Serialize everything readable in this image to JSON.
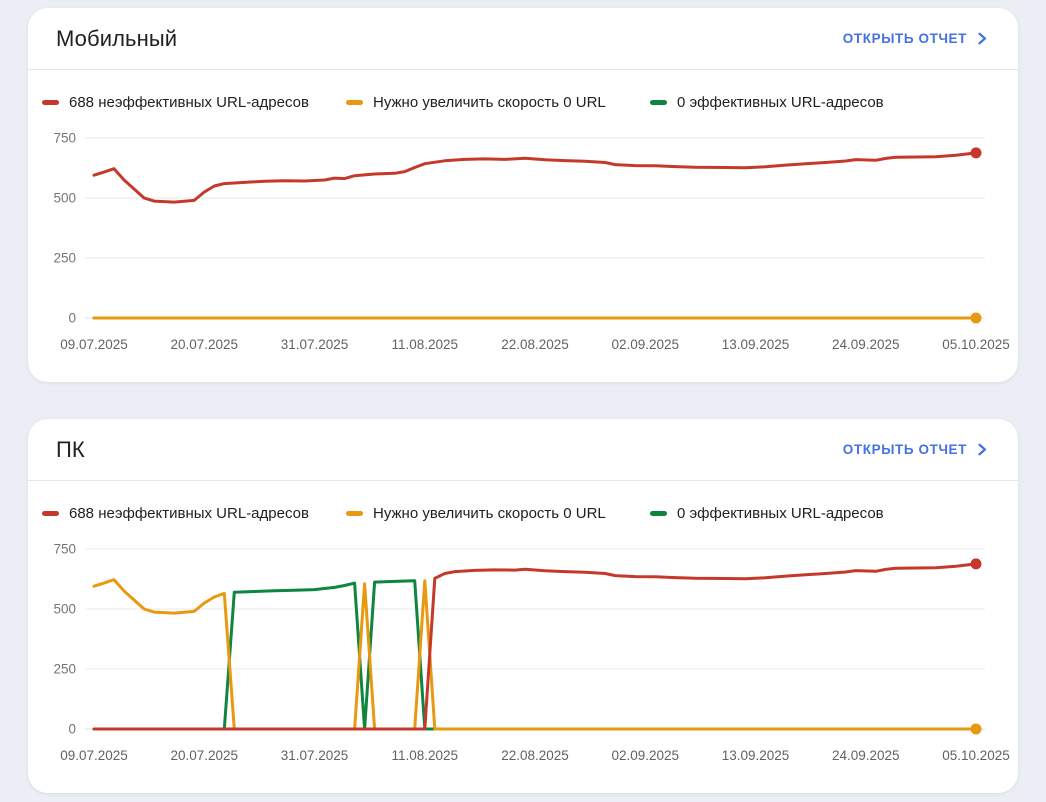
{
  "page": {
    "background": "#ebeef5",
    "accent_blue": "#4472e4"
  },
  "legend": {
    "items": [
      {
        "label": "688 неэффективных URL-адресов",
        "color": "#c5392b"
      },
      {
        "label": "Нужно увеличить скорость 0 URL",
        "color": "#e8990f"
      },
      {
        "label": "0 эффективных URL-адресов",
        "color": "#0f8540"
      }
    ]
  },
  "cards": [
    {
      "title": "Мобильный",
      "link_label": "ОТКРЫТЬ ОТЧЕТ"
    },
    {
      "title": "ПК",
      "link_label": "ОТКРЫТЬ ОТЧЕТ"
    }
  ],
  "chart_data": [
    {
      "type": "line",
      "title": "Мобильный",
      "xlabel": "",
      "ylabel": "",
      "ylim": [
        0,
        750
      ],
      "yticks": [
        0,
        250,
        500,
        750
      ],
      "grid": "horizontal",
      "legend_position": "top",
      "x_span_days": 88,
      "x_tick_interval_days": 11,
      "x_tick_labels": [
        "09.07.2025",
        "20.07.2025",
        "31.07.2025",
        "11.08.2025",
        "22.08.2025",
        "02.09.2025",
        "13.09.2025",
        "24.09.2025",
        "05.10.2025"
      ],
      "series": [
        {
          "name": "688 неэффективных URL-адресов",
          "color": "#c5392b",
          "end_dot": true,
          "points": [
            [
              0,
              595
            ],
            [
              1,
              608
            ],
            [
              2,
              622
            ],
            [
              3,
              575
            ],
            [
              5,
              500
            ],
            [
              6,
              487
            ],
            [
              8,
              483
            ],
            [
              10,
              490
            ],
            [
              11,
              525
            ],
            [
              12,
              550
            ],
            [
              13,
              560
            ],
            [
              15,
              565
            ],
            [
              17,
              570
            ],
            [
              19,
              572
            ],
            [
              21,
              571
            ],
            [
              23,
              575
            ],
            [
              24,
              583
            ],
            [
              25,
              581
            ],
            [
              26,
              593
            ],
            [
              28,
              600
            ],
            [
              30,
              603
            ],
            [
              31,
              610
            ],
            [
              32,
              627
            ],
            [
              33,
              643
            ],
            [
              35,
              655
            ],
            [
              37,
              661
            ],
            [
              39,
              663
            ],
            [
              41,
              661
            ],
            [
              43,
              666
            ],
            [
              45,
              659
            ],
            [
              47,
              656
            ],
            [
              49,
              653
            ],
            [
              51,
              648
            ],
            [
              52,
              639
            ],
            [
              54,
              635
            ],
            [
              56,
              634
            ],
            [
              58,
              631
            ],
            [
              60,
              628
            ],
            [
              63,
              627
            ],
            [
              65,
              626
            ],
            [
              67,
              630
            ],
            [
              69,
              637
            ],
            [
              71,
              643
            ],
            [
              73,
              648
            ],
            [
              75,
              654
            ],
            [
              76,
              660
            ],
            [
              78,
              657
            ],
            [
              79,
              665
            ],
            [
              80,
              670
            ],
            [
              82,
              671
            ],
            [
              84,
              672
            ],
            [
              86,
              678
            ],
            [
              88,
              688
            ]
          ]
        },
        {
          "name": "Нужно увеличить скорость 0 URL",
          "color": "#e8990f",
          "end_dot": true,
          "points": [
            [
              0,
              0
            ],
            [
              88,
              0
            ]
          ]
        },
        {
          "name": "0 эффективных URL-адресов",
          "color": "#0f8540",
          "end_dot": false,
          "points": [
            [
              0,
              0
            ],
            [
              88,
              0
            ]
          ]
        }
      ]
    },
    {
      "type": "line",
      "title": "ПК",
      "xlabel": "",
      "ylabel": "",
      "ylim": [
        0,
        750
      ],
      "yticks": [
        0,
        250,
        500,
        750
      ],
      "grid": "horizontal",
      "legend_position": "top",
      "x_span_days": 88,
      "x_tick_interval_days": 11,
      "x_tick_labels": [
        "09.07.2025",
        "20.07.2025",
        "31.07.2025",
        "11.08.2025",
        "22.08.2025",
        "02.09.2025",
        "13.09.2025",
        "24.09.2025",
        "05.10.2025"
      ],
      "series": [
        {
          "name": "688 неэффективных URL-адресов",
          "color": "#c5392b",
          "end_dot": true,
          "points": [
            [
              0,
              0
            ],
            [
              33,
              0
            ],
            [
              34,
              628
            ],
            [
              35,
              648
            ],
            [
              36,
              656
            ],
            [
              38,
              661
            ],
            [
              40,
              663
            ],
            [
              42,
              662
            ],
            [
              43,
              666
            ],
            [
              45,
              659
            ],
            [
              47,
              656
            ],
            [
              49,
              653
            ],
            [
              51,
              648
            ],
            [
              52,
              639
            ],
            [
              54,
              635
            ],
            [
              56,
              634
            ],
            [
              58,
              631
            ],
            [
              60,
              628
            ],
            [
              63,
              627
            ],
            [
              65,
              626
            ],
            [
              67,
              630
            ],
            [
              69,
              637
            ],
            [
              71,
              643
            ],
            [
              73,
              648
            ],
            [
              75,
              654
            ],
            [
              76,
              660
            ],
            [
              78,
              657
            ],
            [
              79,
              665
            ],
            [
              80,
              670
            ],
            [
              82,
              671
            ],
            [
              84,
              672
            ],
            [
              86,
              678
            ],
            [
              88,
              688
            ]
          ]
        },
        {
          "name": "Нужно увеличить скорость 0 URL",
          "color": "#e8990f",
          "end_dot": true,
          "points": [
            [
              0,
              595
            ],
            [
              1,
              608
            ],
            [
              2,
              622
            ],
            [
              3,
              575
            ],
            [
              5,
              500
            ],
            [
              6,
              487
            ],
            [
              8,
              483
            ],
            [
              10,
              490
            ],
            [
              11,
              525
            ],
            [
              12,
              550
            ],
            [
              13,
              565
            ],
            [
              14,
              0
            ],
            [
              26,
              0
            ],
            [
              27,
              605
            ],
            [
              28,
              0
            ],
            [
              32,
              0
            ],
            [
              33,
              618
            ],
            [
              34,
              0
            ],
            [
              88,
              0
            ]
          ]
        },
        {
          "name": "0 эффективных URL-адресов",
          "color": "#0f8540",
          "end_dot": false,
          "points": [
            [
              0,
              0
            ],
            [
              13,
              0
            ],
            [
              14,
              570
            ],
            [
              16,
              573
            ],
            [
              18,
              576
            ],
            [
              20,
              578
            ],
            [
              22,
              581
            ],
            [
              24,
              590
            ],
            [
              25,
              598
            ],
            [
              26,
              608
            ],
            [
              27,
              0
            ],
            [
              28,
              612
            ],
            [
              30,
              615
            ],
            [
              32,
              618
            ],
            [
              33,
              0
            ],
            [
              88,
              0
            ]
          ]
        }
      ]
    }
  ]
}
